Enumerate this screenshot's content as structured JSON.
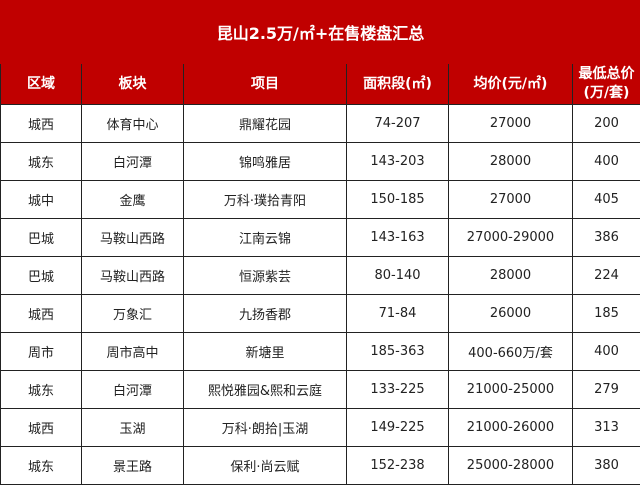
{
  "title": "昆山2.5万/㎡+在售楼盘汇总",
  "headers": [
    "区域",
    "板块",
    "项目",
    "面积段(㎡)",
    "均价(元/㎡)",
    "最低总价\n(万/套)"
  ],
  "header_color": "#c00000",
  "rows": [
    [
      "城西",
      "体育中心",
      "鼎耀花园",
      "74-207",
      "27000",
      "200"
    ],
    [
      "城东",
      "白河潭",
      "锦鸣雅居",
      "143-203",
      "28000",
      "400"
    ],
    [
      "城中",
      "金鹰",
      "万科·璞拾青阳",
      "150-185",
      "27000",
      "405"
    ],
    [
      "巴城",
      "马鞍山西路",
      "江南云锦",
      "143-163",
      "27000-29000",
      "386"
    ],
    [
      "巴城",
      "马鞍山西路",
      "恒源紫芸",
      "80-140",
      "28000",
      "224"
    ],
    [
      "城西",
      "万象汇",
      "九扬香郡",
      "71-84",
      "26000",
      "185"
    ],
    [
      "周市",
      "周市高中",
      "新塘里",
      "185-363",
      "400-660万/套",
      "400"
    ],
    [
      "城东",
      "白河潭",
      "熙悦雅园&熙和云庭",
      "133-225",
      "21000-25000",
      "279"
    ],
    [
      "城西",
      "玉湖",
      "万科·朗拾|玉湖",
      "149-225",
      "21000-26000",
      "313"
    ],
    [
      "城东",
      "景王路",
      "保利·尚云赋",
      "152-238",
      "25000-28000",
      "380"
    ]
  ]
}
